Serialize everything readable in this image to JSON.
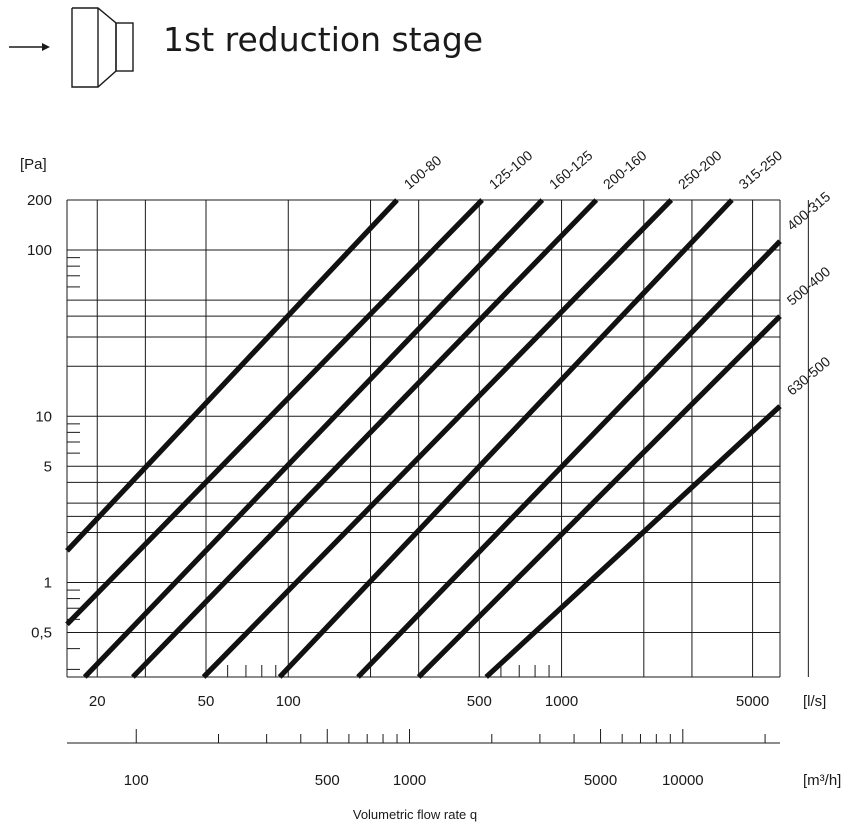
{
  "header": {
    "title": "1st reduction stage",
    "icon": "reducer-icon"
  },
  "chart_data": {
    "type": "line",
    "title": "",
    "xlabel": "Volumetric flow rate q",
    "ylabel": "[Pa]",
    "x_unit_primary": "[l/s]",
    "x_unit_secondary": "[m³/h]",
    "x_scale": "log",
    "y_scale": "log",
    "xlim": [
      15.5,
      6300
    ],
    "ylim": [
      0.27,
      200
    ],
    "x_ticks": [
      {
        "value": 20,
        "label": "20"
      },
      {
        "value": 50,
        "label": "50"
      },
      {
        "value": 100,
        "label": "100"
      },
      {
        "value": 500,
        "label": "500"
      },
      {
        "value": 1000,
        "label": "1000"
      },
      {
        "value": 5000,
        "label": "5000"
      }
    ],
    "y_ticks": [
      {
        "value": 200,
        "label": "200"
      },
      {
        "value": 100,
        "label": "100"
      },
      {
        "value": 10,
        "label": "10"
      },
      {
        "value": 5,
        "label": "5"
      },
      {
        "value": 1,
        "label": "1"
      },
      {
        "value": 0.5,
        "label": "0,5"
      }
    ],
    "secondary_axis_ticks": [
      {
        "value": 100,
        "label": "100"
      },
      {
        "value": 500,
        "label": "500"
      },
      {
        "value": 1000,
        "label": "1000"
      },
      {
        "value": 5000,
        "label": "5000"
      },
      {
        "value": 10000,
        "label": "10000"
      }
    ],
    "grid": true,
    "series": [
      {
        "name": "100-80",
        "x": [
          15.5,
          250
        ],
        "y": [
          1.55,
          200
        ]
      },
      {
        "name": "125-100",
        "x": [
          15.5,
          512
        ],
        "y": [
          0.56,
          200
        ]
      },
      {
        "name": "160-125",
        "x": [
          18,
          850
        ],
        "y": [
          0.27,
          200
        ]
      },
      {
        "name": "200-160",
        "x": [
          27,
          1340
        ],
        "y": [
          0.27,
          200
        ]
      },
      {
        "name": "250-200",
        "x": [
          49,
          2520
        ],
        "y": [
          0.27,
          200
        ]
      },
      {
        "name": "315-250",
        "x": [
          93,
          4200
        ],
        "y": [
          0.27,
          200
        ]
      },
      {
        "name": "400-315",
        "x": [
          180,
          6300
        ],
        "y": [
          0.27,
          113
        ]
      },
      {
        "name": "500-400",
        "x": [
          300,
          6300
        ],
        "y": [
          0.27,
          40
        ]
      },
      {
        "name": "630-500",
        "x": [
          530,
          6300
        ],
        "y": [
          0.27,
          11.5
        ]
      }
    ]
  }
}
